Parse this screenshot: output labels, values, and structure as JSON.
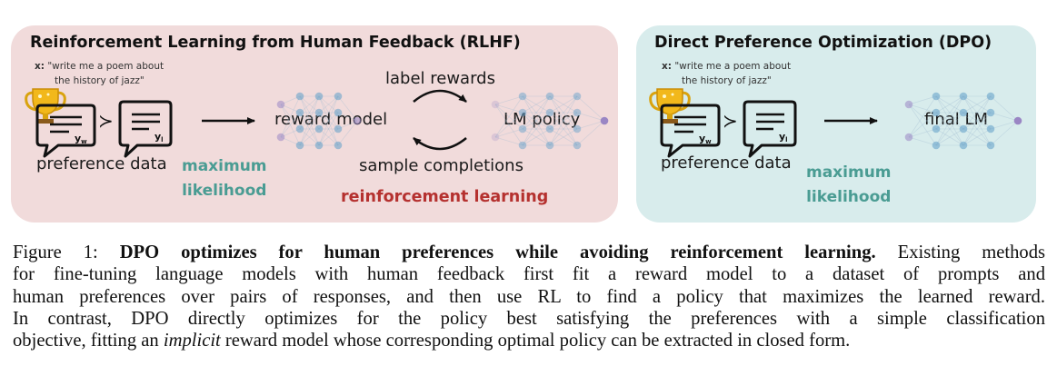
{
  "rlhf": {
    "title": "Reinforcement Learning from Human Feedback (RLHF)",
    "prompt_prefix": "x:",
    "prompt_line1": "\"write me a poem about",
    "prompt_line2": "the history of jazz\"",
    "preference_label": "preference data",
    "max_likelihood_line1": "maximum",
    "max_likelihood_line2": "likelihood",
    "reward_model_label": "reward model",
    "label_rewards": "label rewards",
    "sample_completions": "sample completions",
    "lm_policy_label": "LM policy",
    "rl_label": "reinforcement learning",
    "yw": "y",
    "yw_sub": "w",
    "yl": "y",
    "yl_sub": "l",
    "succ": "≻"
  },
  "dpo": {
    "title": "Direct Preference Optimization (DPO)",
    "prompt_prefix": "x:",
    "prompt_line1": "\"write me a poem about",
    "prompt_line2": "the history of jazz\"",
    "preference_label": "preference data",
    "max_likelihood_line1": "maximum",
    "max_likelihood_line2": "likelihood",
    "final_lm_label": "final LM",
    "yw": "y",
    "yw_sub": "w",
    "yl": "y",
    "yl_sub": "l",
    "succ": "≻"
  },
  "caption": {
    "prefix": "Figure 1: ",
    "bold": "DPO optimizes for human preferences while avoiding reinforcement learning.",
    "line1_rest": " Existing methods",
    "line2": "for fine-tuning language models with human feedback first fit a reward model to a dataset of prompts and",
    "line3": "human preferences over pairs of responses, and then use RL to find a policy that maximizes the learned reward.",
    "line4": "In contrast, DPO directly optimizes for the policy best satisfying the preferences with a simple classification",
    "line5_a": "objective, fitting an ",
    "line5_italic": "implicit",
    "line5_b": " reward model whose corresponding optimal policy can be extracted in closed form."
  },
  "colors": {
    "rlhf_bg": "#f1dbdb",
    "dpo_bg": "#d8ecec",
    "teal": "#4a9c93",
    "red": "#b5312f",
    "node_blue": "#5e9ec9",
    "node_purple": "#9a86c4"
  },
  "icons": [
    "trophy-icon",
    "chat-bubble-icon",
    "neural-network-icon",
    "arrow-icon",
    "cycle-arrow-icon"
  ]
}
